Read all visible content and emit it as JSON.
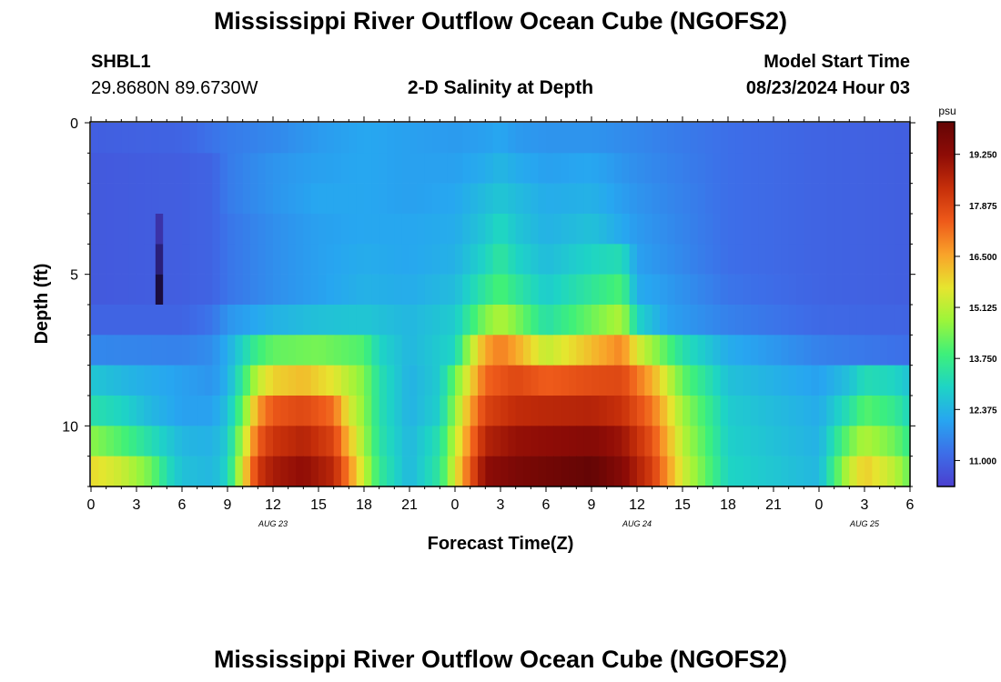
{
  "header": {
    "title": "Mississippi River Outflow Ocean Cube (NGOFS2)",
    "station": "SHBL1",
    "coords": "29.8680N  89.6730W",
    "subtitle": "2-D Salinity at Depth",
    "start_label": "Model Start Time",
    "start_value": "08/23/2024 Hour 03"
  },
  "footer": {
    "title": "Mississippi River Outflow Ocean Cube (NGOFS2)"
  },
  "chart_data": {
    "type": "heatmap",
    "xlabel": "Forecast Time(Z)",
    "ylabel": "Depth (ft)",
    "x_tick_labels": [
      "0",
      "3",
      "6",
      "9",
      "12",
      "15",
      "18",
      "21",
      "0",
      "3",
      "6",
      "9",
      "12",
      "15",
      "18",
      "21",
      "0",
      "3",
      "6"
    ],
    "date_labels": [
      "AUG 23",
      "AUG 24",
      "AUG 25"
    ],
    "y_tick_labels": [
      "0",
      "5",
      "10"
    ],
    "ylim": [
      0,
      12
    ],
    "xlim_hours": [
      0,
      54
    ],
    "colorbar": {
      "unit": "psu",
      "range": [
        10.3,
        20.1
      ],
      "ticks": [
        "19.250",
        "17.875",
        "16.500",
        "15.125",
        "13.750",
        "12.375",
        "11.000"
      ],
      "colors": [
        "#4b3fcf",
        "#3d6ee8",
        "#27a6f0",
        "#1ed4c5",
        "#3ef07a",
        "#9cf53a",
        "#e6e52f",
        "#f9a32a",
        "#ee5a1a",
        "#c62f0a",
        "#8e0c06",
        "#640505"
      ]
    },
    "layers": [
      {
        "depth_ft": 0.5,
        "values": [
          [
            0,
            10.9
          ],
          [
            6,
            11.0
          ],
          [
            9,
            11.4
          ],
          [
            12,
            11.6
          ],
          [
            15,
            11.9
          ],
          [
            18,
            12.1
          ],
          [
            21,
            12.0
          ],
          [
            24,
            11.9
          ],
          [
            26,
            12.0
          ],
          [
            27,
            12.1
          ],
          [
            28,
            11.9
          ],
          [
            30,
            11.8
          ],
          [
            33,
            11.8
          ],
          [
            36,
            11.6
          ],
          [
            42,
            11.2
          ],
          [
            48,
            11.0
          ],
          [
            54,
            10.9
          ]
        ]
      },
      {
        "depth_ft": 1.5,
        "values": [
          [
            0,
            10.8
          ],
          [
            6,
            10.9
          ],
          [
            8,
            11.0
          ],
          [
            9,
            11.4
          ],
          [
            12,
            11.8
          ],
          [
            15,
            12.0
          ],
          [
            18,
            12.1
          ],
          [
            21,
            12.0
          ],
          [
            24,
            12.0
          ],
          [
            26,
            12.2
          ],
          [
            27,
            12.4
          ],
          [
            28,
            12.2
          ],
          [
            30,
            12.0
          ],
          [
            33,
            12.1
          ],
          [
            36,
            11.7
          ],
          [
            42,
            11.2
          ],
          [
            48,
            11.0
          ],
          [
            54,
            10.9
          ]
        ]
      },
      {
        "depth_ft": 2.5,
        "values": [
          [
            0,
            10.8
          ],
          [
            6,
            10.9
          ],
          [
            8,
            11.0
          ],
          [
            9,
            11.4
          ],
          [
            12,
            11.8
          ],
          [
            15,
            12.1
          ],
          [
            18,
            12.1
          ],
          [
            21,
            12.0
          ],
          [
            24,
            12.1
          ],
          [
            26,
            12.5
          ],
          [
            27,
            12.7
          ],
          [
            28,
            12.5
          ],
          [
            30,
            12.2
          ],
          [
            33,
            12.3
          ],
          [
            36,
            11.8
          ],
          [
            42,
            11.2
          ],
          [
            48,
            11.0
          ],
          [
            54,
            10.9
          ]
        ]
      },
      {
        "depth_ft": 3.5,
        "values": [
          [
            0,
            10.8
          ],
          [
            6,
            10.9
          ],
          [
            8,
            11.0
          ],
          [
            9,
            11.3
          ],
          [
            12,
            11.7
          ],
          [
            15,
            12.0
          ],
          [
            18,
            12.1
          ],
          [
            21,
            12.1
          ],
          [
            24,
            12.2
          ],
          [
            26,
            12.7
          ],
          [
            27,
            13.1
          ],
          [
            28,
            12.7
          ],
          [
            30,
            12.3
          ],
          [
            33,
            12.6
          ],
          [
            36,
            11.9
          ],
          [
            42,
            11.2
          ],
          [
            48,
            11.0
          ],
          [
            54,
            10.9
          ]
        ]
      },
      {
        "depth_ft": 4.5,
        "values": [
          [
            0,
            10.8
          ],
          [
            6,
            10.9
          ],
          [
            8,
            11.0
          ],
          [
            9,
            11.3
          ],
          [
            12,
            11.7
          ],
          [
            15,
            12.0
          ],
          [
            18,
            12.2
          ],
          [
            21,
            12.1
          ],
          [
            24,
            12.3
          ],
          [
            26,
            13.0
          ],
          [
            27,
            13.5
          ],
          [
            28,
            13.0
          ],
          [
            30,
            12.5
          ],
          [
            33,
            13.0
          ],
          [
            35,
            13.2
          ],
          [
            36,
            12.0
          ],
          [
            42,
            11.2
          ],
          [
            48,
            11.0
          ],
          [
            54,
            10.9
          ]
        ]
      },
      {
        "depth_ft": 5.5,
        "values": [
          [
            0,
            10.8
          ],
          [
            6,
            10.9
          ],
          [
            8,
            11.0
          ],
          [
            9,
            11.3
          ],
          [
            12,
            11.7
          ],
          [
            15,
            12.0
          ],
          [
            18,
            12.3
          ],
          [
            21,
            12.2
          ],
          [
            24,
            12.5
          ],
          [
            26,
            13.5
          ],
          [
            27,
            14.0
          ],
          [
            28,
            13.5
          ],
          [
            30,
            12.8
          ],
          [
            33,
            13.5
          ],
          [
            35,
            14.0
          ],
          [
            36,
            12.2
          ],
          [
            42,
            11.3
          ],
          [
            48,
            11.0
          ],
          [
            54,
            10.9
          ]
        ]
      },
      {
        "depth_ft": 6.5,
        "values": [
          [
            0,
            11.0
          ],
          [
            6,
            11.0
          ],
          [
            8,
            11.3
          ],
          [
            9,
            11.8
          ],
          [
            12,
            12.3
          ],
          [
            15,
            12.6
          ],
          [
            18,
            12.7
          ],
          [
            21,
            12.4
          ],
          [
            24,
            12.8
          ],
          [
            26,
            14.5
          ],
          [
            27,
            15.0
          ],
          [
            28,
            14.5
          ],
          [
            30,
            13.3
          ],
          [
            33,
            14.3
          ],
          [
            35,
            15.0
          ],
          [
            36,
            13.0
          ],
          [
            38,
            12.0
          ],
          [
            42,
            11.5
          ],
          [
            48,
            11.1
          ],
          [
            54,
            11.0
          ]
        ]
      },
      {
        "depth_ft": 7.5,
        "values": [
          [
            0,
            11.6
          ],
          [
            6,
            11.5
          ],
          [
            8,
            11.7
          ],
          [
            9,
            12.2
          ],
          [
            11,
            13.8
          ],
          [
            12,
            14.2
          ],
          [
            15,
            14.4
          ],
          [
            18,
            14.0
          ],
          [
            19,
            13.0
          ],
          [
            21,
            12.4
          ],
          [
            24,
            13.0
          ],
          [
            25,
            15.0
          ],
          [
            26,
            16.5
          ],
          [
            27,
            17.0
          ],
          [
            28,
            16.5
          ],
          [
            30,
            15.2
          ],
          [
            33,
            16.2
          ],
          [
            35,
            16.9
          ],
          [
            36,
            15.5
          ],
          [
            39,
            13.3
          ],
          [
            42,
            12.2
          ],
          [
            48,
            11.5
          ],
          [
            54,
            11.2
          ]
        ]
      },
      {
        "depth_ft": 8.5,
        "values": [
          [
            0,
            12.7
          ],
          [
            3,
            12.3
          ],
          [
            6,
            12.0
          ],
          [
            8,
            11.8
          ],
          [
            9,
            12.3
          ],
          [
            10,
            13.6
          ],
          [
            11,
            15.2
          ],
          [
            12,
            15.9
          ],
          [
            14,
            16.2
          ],
          [
            16,
            15.6
          ],
          [
            18,
            14.5
          ],
          [
            19,
            13.3
          ],
          [
            21,
            12.3
          ],
          [
            23,
            12.8
          ],
          [
            25,
            15.8
          ],
          [
            26,
            17.3
          ],
          [
            28,
            17.8
          ],
          [
            30,
            17.4
          ],
          [
            33,
            17.7
          ],
          [
            35,
            17.8
          ],
          [
            37,
            16.4
          ],
          [
            39,
            14.2
          ],
          [
            42,
            12.6
          ],
          [
            48,
            12.0
          ],
          [
            50,
            12.6
          ],
          [
            51,
            13.2
          ],
          [
            53,
            13.0
          ],
          [
            54,
            12.6
          ]
        ]
      },
      {
        "depth_ft": 9.5,
        "values": [
          [
            0,
            13.3
          ],
          [
            2,
            13.0
          ],
          [
            4,
            12.4
          ],
          [
            6,
            12.0
          ],
          [
            8,
            12.0
          ],
          [
            9,
            12.6
          ],
          [
            10,
            14.2
          ],
          [
            11,
            16.6
          ],
          [
            12,
            17.5
          ],
          [
            14,
            17.8
          ],
          [
            16,
            17.2
          ],
          [
            17,
            15.5
          ],
          [
            18,
            14.6
          ],
          [
            19,
            13.3
          ],
          [
            21,
            12.3
          ],
          [
            23,
            12.9
          ],
          [
            25,
            16.5
          ],
          [
            26,
            17.9
          ],
          [
            28,
            18.4
          ],
          [
            30,
            18.5
          ],
          [
            33,
            18.6
          ],
          [
            35,
            18.3
          ],
          [
            37,
            17.1
          ],
          [
            39,
            14.8
          ],
          [
            42,
            12.8
          ],
          [
            48,
            12.2
          ],
          [
            50,
            13.3
          ],
          [
            51,
            14.1
          ],
          [
            53,
            13.6
          ],
          [
            54,
            13.0
          ]
        ]
      },
      {
        "depth_ft": 10.5,
        "values": [
          [
            0,
            14.6
          ],
          [
            2,
            14.0
          ],
          [
            4,
            13.2
          ],
          [
            6,
            12.4
          ],
          [
            8,
            12.3
          ],
          [
            9,
            12.8
          ],
          [
            10,
            15.0
          ],
          [
            11,
            17.4
          ],
          [
            12,
            18.2
          ],
          [
            14,
            18.6
          ],
          [
            16,
            17.9
          ],
          [
            17,
            16.2
          ],
          [
            18,
            14.8
          ],
          [
            19,
            13.4
          ],
          [
            21,
            12.4
          ],
          [
            23,
            13.3
          ],
          [
            25,
            17.0
          ],
          [
            26,
            18.6
          ],
          [
            28,
            19.1
          ],
          [
            30,
            19.2
          ],
          [
            33,
            19.4
          ],
          [
            35,
            19.0
          ],
          [
            37,
            17.6
          ],
          [
            39,
            15.1
          ],
          [
            42,
            12.9
          ],
          [
            48,
            12.3
          ],
          [
            50,
            14.3
          ],
          [
            51,
            15.0
          ],
          [
            53,
            14.3
          ],
          [
            54,
            13.6
          ]
        ]
      },
      {
        "depth_ft": 11.5,
        "values": [
          [
            0,
            15.8
          ],
          [
            2,
            15.3
          ],
          [
            4,
            14.3
          ],
          [
            5,
            13.2
          ],
          [
            6,
            12.6
          ],
          [
            8,
            12.4
          ],
          [
            9,
            13.0
          ],
          [
            10,
            15.6
          ],
          [
            11,
            18.1
          ],
          [
            12,
            18.8
          ],
          [
            14,
            19.2
          ],
          [
            16,
            18.5
          ],
          [
            17,
            16.9
          ],
          [
            18,
            15.2
          ],
          [
            19,
            13.6
          ],
          [
            21,
            12.4
          ],
          [
            23,
            13.5
          ],
          [
            25,
            17.5
          ],
          [
            26,
            19.2
          ],
          [
            28,
            19.6
          ],
          [
            30,
            19.8
          ],
          [
            33,
            20.1
          ],
          [
            35,
            19.4
          ],
          [
            37,
            18.0
          ],
          [
            39,
            15.4
          ],
          [
            42,
            13.0
          ],
          [
            48,
            12.4
          ],
          [
            50,
            15.2
          ],
          [
            51,
            16.0
          ],
          [
            53,
            15.1
          ],
          [
            54,
            14.2
          ]
        ]
      }
    ]
  }
}
